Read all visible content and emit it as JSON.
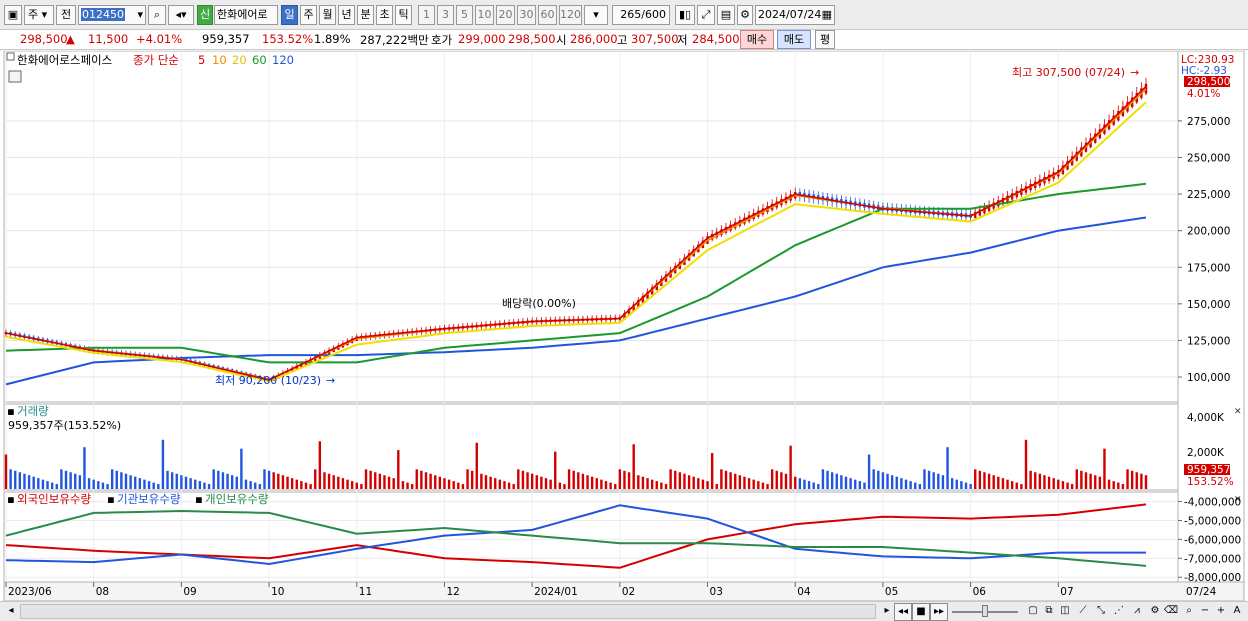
{
  "toolbar": {
    "mode": "주",
    "jeon": "전",
    "code": "012450",
    "name": "한화에어로",
    "sin": "신",
    "periods": [
      "일",
      "주",
      "월",
      "년",
      "분",
      "초",
      "틱"
    ],
    "active_period": "일",
    "numbers": [
      "1",
      "3",
      "5",
      "10",
      "20",
      "30",
      "60",
      "120"
    ],
    "count": "265",
    "count_total": "/600",
    "date": "2024/07/24"
  },
  "info": {
    "price": "298,500",
    "arrow": "▲",
    "change": "11,500",
    "change_pct": "+4.01%",
    "volume": "959,357",
    "volume_pct": "153.52%",
    "turnover": "1.89%",
    "amount": "287,222백만",
    "hoga_label": "호가",
    "hoga_sell": "299,000",
    "hoga_buy": "298,500",
    "open_label": "시",
    "open": "286,000",
    "high_label": "고",
    "high": "307,500",
    "low_label": "저",
    "low": "284,500",
    "buy_btn": "매수",
    "sell_btn": "매도",
    "eval_btn": "평"
  },
  "price_panel": {
    "title": "한화에어로스페이스",
    "ma_label": "종가 단순",
    "ma_periods": [
      "5",
      "10",
      "20",
      "60",
      "120"
    ],
    "ma_colors": [
      "#d40000",
      "#f08c00",
      "#f0e000",
      "#1a9a2a",
      "#2255dd"
    ],
    "lc": "LC:230.93",
    "hc": "HC:-2.93",
    "last_price": "298,500",
    "last_pct": "4.01%",
    "high_note": "최고 307,500 (07/24)",
    "low_note": "최저 90,200 (10/23)",
    "dividend_note": "배당락(0.00%)",
    "y_ticks": [
      "275,000",
      "250,000",
      "225,000",
      "200,000",
      "175,000",
      "150,000",
      "125,000",
      "100,000"
    ]
  },
  "volume_panel": {
    "title": "거래량",
    "value": "959,357주(153.52%)",
    "y_ticks": [
      "4,000K",
      "2,000K"
    ],
    "last_value": "959,357",
    "last_pct": "153.52%"
  },
  "holding_panel": {
    "series": [
      "외국인보유수량",
      "기관보유수량",
      "개인보유수량"
    ],
    "colors": [
      "#d40000",
      "#2255dd",
      "#2a8a4a"
    ],
    "y_ticks": [
      "-4,000,000",
      "-5,000,000",
      "-6,000,000",
      "-7,000,000",
      "-8,000,000"
    ]
  },
  "x_axis": {
    "labels": [
      "2023/06",
      "08",
      "09",
      "10",
      "11",
      "12",
      "2024/01",
      "02",
      "03",
      "04",
      "05",
      "06",
      "07"
    ],
    "last_date": "07/24"
  },
  "chart_data": [
    {
      "type": "line",
      "title": "한화에어로스페이스",
      "x": [
        "2023/06",
        "08",
        "09",
        "10",
        "11",
        "12",
        "2024/01",
        "02",
        "03",
        "04",
        "05",
        "06",
        "07",
        "07/24"
      ],
      "series": [
        {
          "name": "5",
          "values": [
            130000,
            118000,
            112000,
            98000,
            127000,
            133000,
            138000,
            140000,
            195000,
            225000,
            215000,
            210000,
            240000,
            298500
          ]
        },
        {
          "name": "60",
          "values": [
            118000,
            120000,
            120000,
            110000,
            110000,
            120000,
            125000,
            130000,
            155000,
            190000,
            215000,
            215000,
            225000,
            232000
          ]
        },
        {
          "name": "120",
          "values": [
            95000,
            110000,
            113000,
            115000,
            115000,
            117000,
            120000,
            125000,
            140000,
            155000,
            175000,
            185000,
            200000,
            209000
          ]
        }
      ],
      "annotations": [
        "최고 307,500 (07/24)",
        "최저 90,200 (10/23)",
        "배당락(0.00%)"
      ],
      "ylim": [
        85000,
        320000
      ]
    },
    {
      "type": "bar",
      "title": "거래량",
      "note": "959,357주(153.52%)",
      "ylim": [
        0,
        5000000
      ]
    },
    {
      "type": "line",
      "x": [
        "2023/06",
        "08",
        "09",
        "10",
        "11",
        "12",
        "2024/01",
        "02",
        "03",
        "04",
        "05",
        "06",
        "07",
        "07/24"
      ],
      "series": [
        {
          "name": "외국인보유수량",
          "values": [
            -6300000,
            -6600000,
            -6800000,
            -7000000,
            -6300000,
            -7000000,
            -7200000,
            -7500000,
            -6000000,
            -5200000,
            -4800000,
            -4900000,
            -4700000,
            -4150000
          ]
        },
        {
          "name": "기관보유수량",
          "values": [
            -7100000,
            -7200000,
            -6800000,
            -7300000,
            -6500000,
            -5800000,
            -5500000,
            -4200000,
            -4900000,
            -6500000,
            -6900000,
            -7000000,
            -6700000,
            -6700000
          ]
        },
        {
          "name": "개인보유수량",
          "values": [
            -5800000,
            -4600000,
            -4500000,
            -4600000,
            -5700000,
            -5400000,
            -5800000,
            -6200000,
            -6200000,
            -6400000,
            -6400000,
            -6700000,
            -7000000,
            -7400000
          ]
        }
      ],
      "ylim": [
        -8200000,
        -3600000
      ]
    }
  ]
}
